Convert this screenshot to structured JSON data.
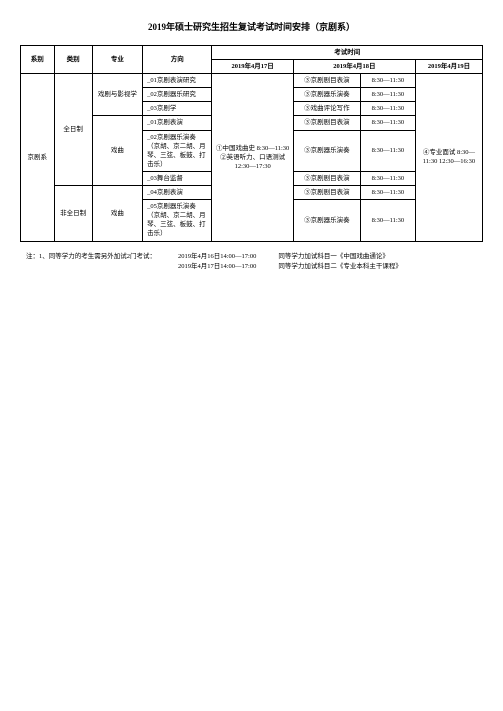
{
  "title": "2019年硕士研究生招生复试考试时间安排（京剧系）",
  "headers": {
    "dept": "系别",
    "type": "类别",
    "major": "专业",
    "direction": "方向",
    "time_group": "考试时间",
    "day1": "2019年4月17日",
    "day2": "2019年4月18日",
    "day3": "2019年4月19日"
  },
  "dept": "京剧系",
  "type1": "全日制",
  "type2": "非全日制",
  "major1": "戏剧与影视学",
  "major2": "戏曲",
  "dirs": {
    "d01": "_01京剧表演研究",
    "d02": "_02京剧器乐研究",
    "d03": "_03京剧学",
    "d04": "_01京剧表演",
    "d05": "_02京剧器乐演奏（京胡、京二胡、月琴、三弦、板鼓、打击乐）",
    "d06": "_03舞台监督",
    "d07": "_04京剧表演",
    "d08": "_05京剧器乐演奏（京胡、京二胡、月琴、三弦、板鼓、打击乐）"
  },
  "day1_content": "①中国戏曲史 8:30—11:30 ②英语听力、口语测试12:30—17:30",
  "day2": {
    "c1": "③京剧剧目表演",
    "t": "8:30—11:30",
    "c2": "③京剧器乐演奏",
    "c3": "③戏曲评论写作",
    "c4": "③京剧剧目表演",
    "c5": "③京剧器乐演奏",
    "c6": "③京剧剧目表演",
    "c7": "③京剧剧目表演",
    "c8": "③京剧器乐演奏"
  },
  "day3_content": "④专业面试 8:30—11:30 12:30—16:30",
  "notes": {
    "l1": "注：1、同等学力的考生需另外加试2门考试：",
    "l2a": "2019年4月16日14:00—17:00",
    "l2b": "2019年4月17日14:00—17:00",
    "l3a": "同等学力加试科目一《中国戏曲通论》",
    "l3b": "同等学力加试科目二《专业本科主干课程》"
  }
}
